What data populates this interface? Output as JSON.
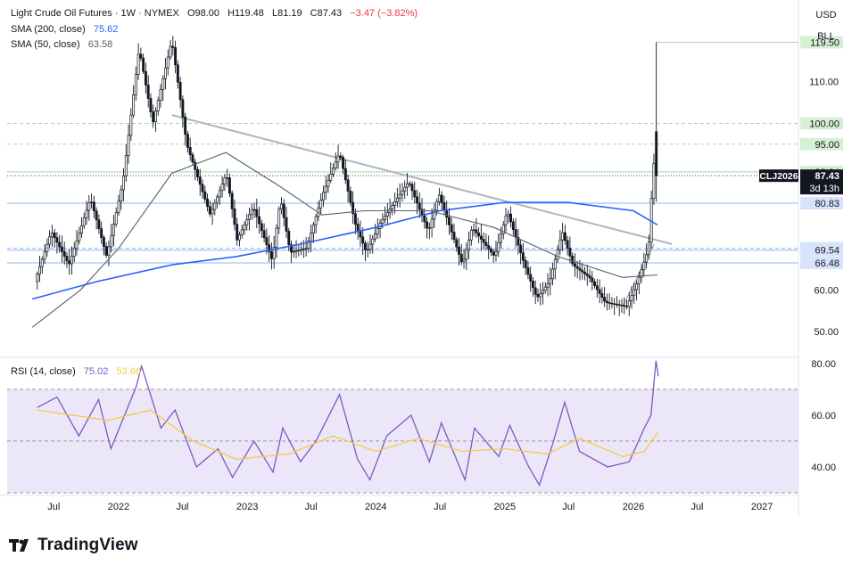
{
  "header": {
    "title": "Light Crude Oil Futures · 1W · NYMEX",
    "open": "O98.00",
    "high": "H119.48",
    "low": "L81.19",
    "close": "C87.43",
    "change": "−3.47 (−3.82%)",
    "change_color": "#f23645",
    "sma200_label": "SMA (200, close)",
    "sma200_value": "75.62",
    "sma200_color": "#2962ff",
    "sma50_label": "SMA (50, close)",
    "sma50_value": "63.58",
    "sma50_color": "#5d606b"
  },
  "top_buttons": {
    "currency": "USD",
    "unit": "BLL"
  },
  "rsi": {
    "label": "RSI (14, close)",
    "value": "75.02",
    "value_color": "#7e57c2",
    "ma_value": "53.66",
    "ma_color": "#f7c948"
  },
  "branding": {
    "logo_text": "TradingView"
  },
  "chart_data": [
    {
      "type": "candlestick",
      "title": "Light Crude Oil Futures · 1W · NYMEX",
      "x_tick_labels": [
        "Jul",
        "2022",
        "Jul",
        "2023",
        "Jul",
        "2024",
        "Jul",
        "2025",
        "Jul",
        "2026",
        "Jul",
        "2027"
      ],
      "x_tick_dates": [
        "2021-07",
        "2022-01",
        "2022-07",
        "2023-01",
        "2023-07",
        "2024-01",
        "2024-07",
        "2025-01",
        "2025-07",
        "2026-01",
        "2026-07",
        "2027-01"
      ],
      "y_tick_labels": [
        "50.00",
        "60.00",
        "110.00"
      ],
      "y_ticks": [
        50,
        60,
        110
      ],
      "ylim": [
        44,
        129
      ],
      "last_price_label": "87.43",
      "symbol_label": "CLJ2026",
      "countdown_label": "3d 13h",
      "price_labels": [
        {
          "value": 119.5,
          "text": "119.50",
          "color": "#d7f0d4"
        },
        {
          "value": 100.0,
          "text": "100.00",
          "color": "#d7f0d4"
        },
        {
          "value": 95.0,
          "text": "95.00",
          "color": "#d7f0d4"
        },
        {
          "value": 88.34,
          "text": "88.34",
          "color": "#d7f0d4"
        },
        {
          "value": 80.83,
          "text": "80.83",
          "color": "#d6e3fb"
        },
        {
          "value": 70.0,
          "text": "70.00",
          "color": "#d6e3fb"
        },
        {
          "value": 69.54,
          "text": "69.54",
          "color": "#d6e3fb"
        },
        {
          "value": 66.48,
          "text": "66.48",
          "color": "#d6e3fb"
        }
      ],
      "close_path": [
        [
          "2021-05-15",
          62
        ],
        [
          "2021-07-01",
          74
        ],
        [
          "2021-08-20",
          66
        ],
        [
          "2021-10-20",
          82
        ],
        [
          "2021-12-05",
          68
        ],
        [
          "2022-01-20",
          86
        ],
        [
          "2022-03-07",
          118
        ],
        [
          "2022-04-15",
          100
        ],
        [
          "2022-06-08",
          120
        ],
        [
          "2022-07-20",
          95
        ],
        [
          "2022-09-25",
          78
        ],
        [
          "2022-11-10",
          88
        ],
        [
          "2022-12-10",
          72
        ],
        [
          "2023-01-25",
          80
        ],
        [
          "2023-03-20",
          67
        ],
        [
          "2023-04-12",
          82
        ],
        [
          "2023-05-10",
          69
        ],
        [
          "2023-06-25",
          70
        ],
        [
          "2023-08-10",
          83
        ],
        [
          "2023-09-27",
          93
        ],
        [
          "2023-11-10",
          76
        ],
        [
          "2023-12-12",
          69
        ],
        [
          "2024-01-20",
          76
        ],
        [
          "2024-04-10",
          86
        ],
        [
          "2024-06-05",
          74
        ],
        [
          "2024-07-05",
          83
        ],
        [
          "2024-09-10",
          66
        ],
        [
          "2024-10-07",
          75
        ],
        [
          "2024-12-10",
          68
        ],
        [
          "2025-01-15",
          79
        ],
        [
          "2025-03-05",
          66
        ],
        [
          "2025-04-09",
          58
        ],
        [
          "2025-05-15",
          62
        ],
        [
          "2025-06-20",
          74
        ],
        [
          "2025-07-20",
          66
        ],
        [
          "2025-09-05",
          63
        ],
        [
          "2025-10-20",
          57
        ],
        [
          "2025-12-20",
          56
        ],
        [
          "2026-01-20",
          62
        ],
        [
          "2026-02-20",
          70
        ],
        [
          "2026-03-06",
          90.9
        ],
        [
          "2026-03-13",
          87.43
        ]
      ],
      "drawings": {
        "trendline": {
          "start": [
            "2022-06-01",
            102
          ],
          "end": [
            "2026-04-20",
            71
          ]
        },
        "mini_trend": {
          "start": [
            "2025-12-01",
            56
          ],
          "end": [
            "2026-03-01",
            71
          ]
        }
      },
      "series": [
        {
          "name": "SMA (200, close)",
          "color": "#2962ff",
          "values": [
            [
              "2021-05-01",
              57.8
            ],
            [
              "2021-11-01",
              62
            ],
            [
              "2022-06-01",
              66
            ],
            [
              "2022-12-01",
              68
            ],
            [
              "2023-06-01",
              71
            ],
            [
              "2024-01-01",
              75
            ],
            [
              "2024-07-01",
              79
            ],
            [
              "2025-01-01",
              81
            ],
            [
              "2025-07-01",
              81
            ],
            [
              "2026-01-01",
              79
            ],
            [
              "2026-03-10",
              75.62
            ]
          ]
        },
        {
          "name": "SMA (50, close)",
          "color": "#5d606b",
          "values": [
            [
              "2021-05-01",
              51
            ],
            [
              "2021-09-15",
              60
            ],
            [
              "2022-01-01",
              70
            ],
            [
              "2022-06-01",
              88
            ],
            [
              "2022-11-01",
              93
            ],
            [
              "2023-04-01",
              85
            ],
            [
              "2023-08-01",
              78
            ],
            [
              "2023-12-01",
              79
            ],
            [
              "2024-06-01",
              79
            ],
            [
              "2024-12-01",
              75
            ],
            [
              "2025-06-01",
              68
            ],
            [
              "2025-12-01",
              63
            ],
            [
              "2026-03-10",
              63.58
            ]
          ]
        }
      ]
    },
    {
      "type": "line",
      "title": "RSI (14, close)",
      "y_tick_labels": [
        "80.00",
        "60.00",
        "40.00"
      ],
      "y_ticks": [
        80,
        60,
        40
      ],
      "ylim": [
        30,
        82
      ],
      "levels": [
        70,
        50,
        30
      ],
      "series": [
        {
          "name": "RSI",
          "color": "#7e57c2",
          "values": [
            [
              "2021-05-15",
              63
            ],
            [
              "2021-07-10",
              67
            ],
            [
              "2021-09-10",
              52
            ],
            [
              "2021-11-05",
              66
            ],
            [
              "2021-12-10",
              47
            ],
            [
              "2022-02-20",
              71
            ],
            [
              "2022-03-07",
              79
            ],
            [
              "2022-05-01",
              55
            ],
            [
              "2022-06-10",
              62
            ],
            [
              "2022-08-10",
              40
            ],
            [
              "2022-10-10",
              47
            ],
            [
              "2022-11-20",
              36
            ],
            [
              "2023-01-20",
              50
            ],
            [
              "2023-03-15",
              38
            ],
            [
              "2023-04-12",
              55
            ],
            [
              "2023-06-01",
              42
            ],
            [
              "2023-07-15",
              50
            ],
            [
              "2023-09-20",
              68
            ],
            [
              "2023-11-10",
              43
            ],
            [
              "2023-12-15",
              35
            ],
            [
              "2024-02-01",
              52
            ],
            [
              "2024-04-10",
              60
            ],
            [
              "2024-06-01",
              42
            ],
            [
              "2024-07-05",
              57
            ],
            [
              "2024-09-10",
              35
            ],
            [
              "2024-10-07",
              55
            ],
            [
              "2024-12-15",
              44
            ],
            [
              "2025-01-15",
              56
            ],
            [
              "2025-03-10",
              40
            ],
            [
              "2025-04-09",
              33
            ],
            [
              "2025-05-15",
              48
            ],
            [
              "2025-06-20",
              65
            ],
            [
              "2025-08-01",
              46
            ],
            [
              "2025-10-20",
              40
            ],
            [
              "2025-12-20",
              42
            ],
            [
              "2026-02-01",
              55
            ],
            [
              "2026-02-20",
              60
            ],
            [
              "2026-03-06",
              81
            ],
            [
              "2026-03-13",
              75.02
            ]
          ]
        },
        {
          "name": "RSI-based MA",
          "color": "#f7c948",
          "values": [
            [
              "2021-05-15",
              62
            ],
            [
              "2021-12-01",
              58
            ],
            [
              "2022-04-01",
              62
            ],
            [
              "2022-08-01",
              50
            ],
            [
              "2022-12-01",
              43
            ],
            [
              "2023-05-01",
              45
            ],
            [
              "2023-09-01",
              52
            ],
            [
              "2024-01-01",
              46
            ],
            [
              "2024-05-01",
              51
            ],
            [
              "2024-09-01",
              46
            ],
            [
              "2025-01-01",
              47
            ],
            [
              "2025-05-01",
              45
            ],
            [
              "2025-08-01",
              51
            ],
            [
              "2025-12-01",
              44
            ],
            [
              "2026-02-01",
              46
            ],
            [
              "2026-03-13",
              53.66
            ]
          ]
        }
      ]
    }
  ]
}
